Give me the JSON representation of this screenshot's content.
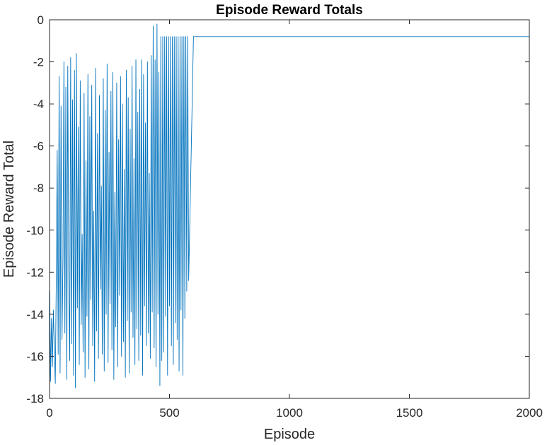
{
  "chart_data": {
    "type": "line",
    "title": "Episode Reward Totals",
    "xlabel": "Episode",
    "ylabel": "Episode Reward Total",
    "xlim": [
      0,
      2000
    ],
    "ylim": [
      -18,
      0
    ],
    "xticks": [
      0,
      500,
      1000,
      1500,
      2000
    ],
    "yticks": [
      0,
      -2,
      -4,
      -6,
      -8,
      -10,
      -12,
      -14,
      -16,
      -18
    ],
    "xtick_labels": [
      "0",
      "500",
      "1000",
      "1500",
      "2000"
    ],
    "ytick_labels": [
      "0",
      "-2",
      "-4",
      "-6",
      "-8",
      "-10",
      "-12",
      "-14",
      "-16",
      "-18"
    ],
    "grid": false,
    "legend": "none",
    "series": [
      {
        "color": "#0072BD",
        "x": [
          1,
          4,
          8,
          12,
          16,
          20,
          24,
          28,
          32,
          36,
          40,
          44,
          48,
          52,
          56,
          60,
          64,
          68,
          72,
          76,
          80,
          84,
          88,
          92,
          96,
          100,
          104,
          108,
          112,
          116,
          120,
          124,
          128,
          132,
          136,
          140,
          144,
          148,
          152,
          156,
          160,
          164,
          168,
          172,
          176,
          180,
          184,
          188,
          192,
          196,
          200,
          204,
          208,
          212,
          216,
          220,
          224,
          228,
          232,
          236,
          240,
          244,
          248,
          252,
          256,
          260,
          264,
          268,
          272,
          276,
          280,
          284,
          288,
          292,
          296,
          300,
          304,
          308,
          312,
          316,
          320,
          324,
          328,
          332,
          336,
          340,
          344,
          348,
          352,
          356,
          360,
          364,
          368,
          372,
          376,
          380,
          384,
          388,
          392,
          396,
          400,
          404,
          408,
          412,
          416,
          420,
          424,
          428,
          432,
          436,
          440,
          444,
          448,
          452,
          456,
          460,
          464,
          468,
          472,
          476,
          480,
          484,
          488,
          492,
          496,
          500,
          504,
          508,
          512,
          516,
          520,
          524,
          528,
          532,
          536,
          540,
          544,
          548,
          552,
          556,
          560,
          564,
          568,
          572,
          576,
          580,
          600,
          800,
          1000,
          1200,
          1400,
          1600,
          1800,
          2000
        ],
        "y": [
          -12.9,
          -17.2,
          -14.2,
          -16.5,
          -13.8,
          -15.6,
          -17.3,
          -12.5,
          -6.2,
          -15.9,
          -2.7,
          -16.8,
          -4.1,
          -15.2,
          -11.4,
          -2.0,
          -14.9,
          -3.2,
          -17.1,
          -2.2,
          -12.0,
          -16.2,
          -1.8,
          -15.4,
          -3.8,
          -16.9,
          -2.4,
          -17.5,
          -1.6,
          -13.7,
          -5.1,
          -16.4,
          -2.9,
          -14.5,
          -10.2,
          -15.8,
          -3.5,
          -17.0,
          -6.7,
          -14.1,
          -2.6,
          -16.6,
          -4.6,
          -13.3,
          -3.1,
          -15.5,
          -9.1,
          -17.2,
          -2.3,
          -14.8,
          -5.4,
          -16.1,
          -3.6,
          -12.8,
          -7.9,
          -15.9,
          -2.8,
          -16.7,
          -4.3,
          -14.0,
          -2.1,
          -16.3,
          -6.3,
          -13.5,
          -3.4,
          -15.7,
          -2.5,
          -17.1,
          -8.2,
          -14.6,
          -3.0,
          -16.5,
          -5.7,
          -13.1,
          -2.7,
          -16.0,
          -4.0,
          -15.3,
          -7.1,
          -17.0,
          -2.4,
          -14.3,
          -3.7,
          -16.8,
          -5.2,
          -13.9,
          -2.2,
          -15.1,
          -6.6,
          -16.4,
          -1.9,
          -14.7,
          -4.4,
          -16.2,
          -3.3,
          -15.0,
          -1.9,
          -16.9,
          -2.6,
          -13.6,
          -4.9,
          -15.5,
          -2.0,
          -14.9,
          -7.3,
          -16.1,
          -1.7,
          -13.9,
          -0.3,
          -15.6,
          -1.9,
          -16.5,
          -0.2,
          -14.0,
          -2.5,
          -17.4,
          -0.8,
          -16.2,
          -0.8,
          -15.8,
          -0.8,
          -14.1,
          -0.8,
          -16.9,
          -0.8,
          -13.6,
          -0.8,
          -15.5,
          -0.8,
          -16.4,
          -0.8,
          -14.4,
          -0.8,
          -15.2,
          -0.8,
          -16.7,
          -0.8,
          -13.8,
          -0.8,
          -16.9,
          -0.8,
          -14.2,
          -0.8,
          -12.9,
          -0.8,
          -12.4,
          -0.8,
          -0.8,
          -0.8,
          -0.8,
          -0.8,
          -0.8,
          -0.8,
          -0.8
        ]
      }
    ]
  }
}
